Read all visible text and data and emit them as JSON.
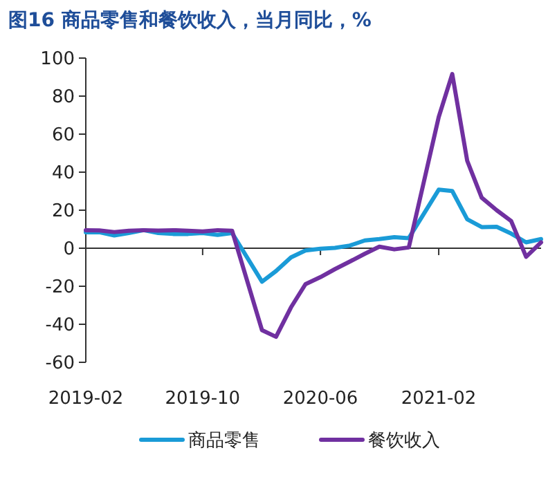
{
  "chart_data": {
    "type": "line",
    "title": "图16 商品零售和餐饮收入，当月同比，%",
    "x": [
      "2019-02",
      "2019-03",
      "2019-04",
      "2019-05",
      "2019-06",
      "2019-07",
      "2019-08",
      "2019-09",
      "2019-10",
      "2019-11",
      "2019-12",
      "2020-02",
      "2020-03",
      "2020-04",
      "2020-05",
      "2020-06",
      "2020-07",
      "2020-08",
      "2020-09",
      "2020-10",
      "2020-11",
      "2020-12",
      "2021-02",
      "2021-03",
      "2021-04",
      "2021-05",
      "2021-06",
      "2021-07",
      "2021-08",
      "2021-09"
    ],
    "series": [
      {
        "name": "商品零售",
        "color": "#1a9bd7",
        "values": [
          8.4,
          8.4,
          6.7,
          8,
          9.5,
          8,
          7.5,
          7.5,
          8,
          7,
          8,
          -17.6,
          -12,
          -4.8,
          -1.2,
          -0.3,
          0.2,
          1.4,
          4.1,
          4.8,
          5.8,
          5.3,
          30.8,
          30.1,
          15.2,
          11.1,
          11.3,
          7.7,
          3.1,
          4.8
        ]
      },
      {
        "name": "餐饮收入",
        "color": "#7030a0",
        "values": [
          9.5,
          9.4,
          8.5,
          9.2,
          9.5,
          9.3,
          9.5,
          9.2,
          8.8,
          9.5,
          9.2,
          -43.1,
          -46.6,
          -31.1,
          -18.9,
          -15.2,
          -11,
          -7,
          -2.9,
          0.8,
          -0.6,
          0.4,
          69,
          91.6,
          46,
          26.6,
          20,
          14.3,
          -4.5,
          3.1
        ]
      }
    ],
    "xlim": [
      "2019-02",
      "2021-09"
    ],
    "xticks": [
      {
        "value": "2019-02",
        "label": "2019-02"
      },
      {
        "value": "2019-10",
        "label": "2019-10"
      },
      {
        "value": "2020-06",
        "label": "2020-06"
      },
      {
        "value": "2021-02",
        "label": "2021-02"
      }
    ],
    "ylim": [
      -60,
      100
    ],
    "yticks": [
      -60,
      -40,
      -20,
      0,
      20,
      40,
      60,
      80,
      100
    ],
    "legend": "bottom",
    "marker": "none",
    "line_style": "solid"
  }
}
